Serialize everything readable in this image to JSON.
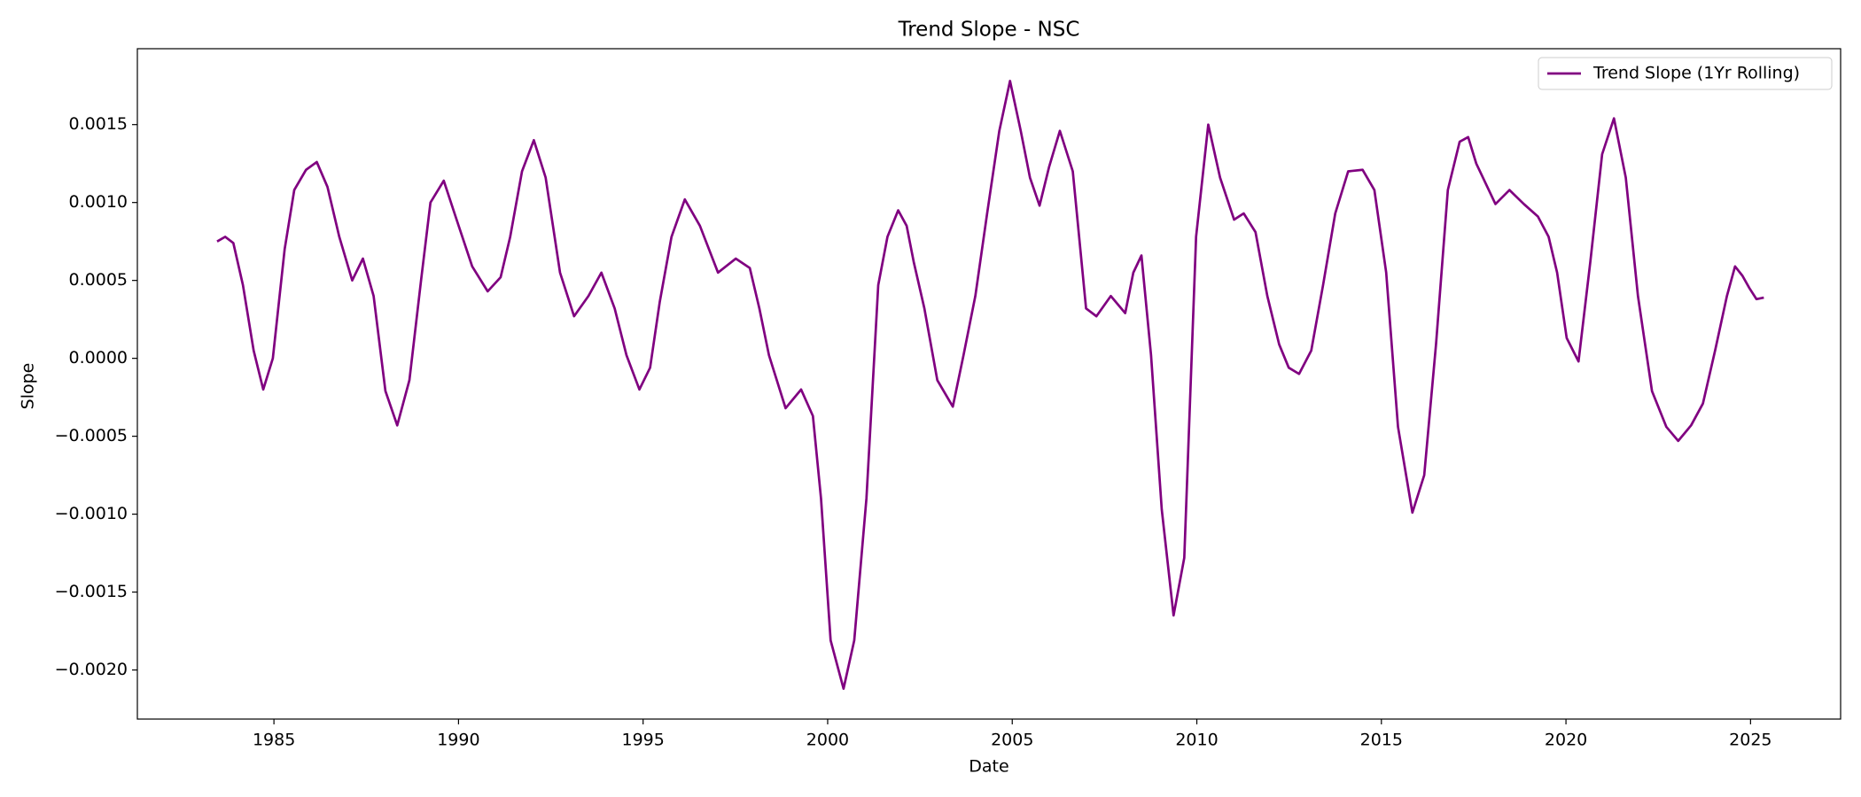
{
  "chart_data": {
    "type": "line",
    "title": "Trend Slope - NSC",
    "x_label": "Date",
    "y_label": "Slope",
    "x": [
      1983.46,
      1983.68,
      1983.9,
      1984.16,
      1984.45,
      1984.71,
      1984.97,
      1985.29,
      1985.55,
      1985.87,
      1986.16,
      1986.45,
      1986.77,
      1987.12,
      1987.41,
      1987.7,
      1988.02,
      1988.34,
      1988.67,
      1988.99,
      1989.24,
      1989.6,
      1989.92,
      1990.37,
      1990.79,
      1991.14,
      1991.4,
      1991.72,
      1992.04,
      1992.36,
      1992.75,
      1993.13,
      1993.52,
      1993.87,
      1994.23,
      1994.55,
      1994.9,
      1995.19,
      1995.45,
      1995.77,
      1996.13,
      1996.54,
      1997.03,
      1997.51,
      1997.89,
      1998.15,
      1998.41,
      1998.86,
      1999.28,
      1999.6,
      1999.82,
      2000.08,
      2000.43,
      2000.72,
      2001.05,
      2001.37,
      2001.62,
      2001.91,
      2002.14,
      2002.33,
      2002.62,
      2002.97,
      2003.39,
      2003.68,
      2004.0,
      2004.32,
      2004.65,
      2004.94,
      2005.23,
      2005.48,
      2005.74,
      2006.0,
      2006.29,
      2006.64,
      2007.0,
      2007.28,
      2007.67,
      2008.06,
      2008.28,
      2008.5,
      2008.76,
      2009.05,
      2009.37,
      2009.66,
      2009.98,
      2010.31,
      2010.63,
      2011.01,
      2011.27,
      2011.59,
      2011.91,
      2012.23,
      2012.49,
      2012.77,
      2013.1,
      2013.42,
      2013.75,
      2014.1,
      2014.49,
      2014.81,
      2015.13,
      2015.45,
      2015.84,
      2016.16,
      2016.48,
      2016.8,
      2017.12,
      2017.35,
      2017.57,
      2017.83,
      2018.09,
      2018.47,
      2018.86,
      2019.24,
      2019.53,
      2019.76,
      2020.02,
      2020.34,
      2020.66,
      2020.98,
      2021.3,
      2021.62,
      2021.95,
      2022.33,
      2022.72,
      2023.04,
      2023.39,
      2023.71,
      2024.04,
      2024.36,
      2024.58,
      2024.78,
      2024.97,
      2025.16,
      2025.36
    ],
    "series": [
      {
        "name": "Trend Slope (1Yr Rolling)",
        "color": "#800080",
        "values": [
          0.00075,
          0.00078,
          0.00074,
          0.00047,
          5e-05,
          -0.0002,
          0.0,
          0.0007,
          0.00108,
          0.00121,
          0.00126,
          0.0011,
          0.00078,
          0.0005,
          0.00064,
          0.0004,
          -0.00021,
          -0.00043,
          -0.00014,
          0.00051,
          0.001,
          0.00114,
          0.00091,
          0.00059,
          0.00043,
          0.00052,
          0.00078,
          0.0012,
          0.0014,
          0.00116,
          0.00055,
          0.00027,
          0.0004,
          0.00055,
          0.00032,
          2e-05,
          -0.0002,
          -6e-05,
          0.00036,
          0.00078,
          0.00102,
          0.00085,
          0.00055,
          0.00064,
          0.00058,
          0.00032,
          2e-05,
          -0.00032,
          -0.0002,
          -0.00037,
          -0.0009,
          -0.00181,
          -0.00212,
          -0.00181,
          -0.0009,
          0.00047,
          0.00078,
          0.00095,
          0.00085,
          0.00062,
          0.00032,
          -0.00014,
          -0.00031,
          2e-05,
          0.0004,
          0.00093,
          0.00146,
          0.00178,
          0.00146,
          0.00116,
          0.00098,
          0.00123,
          0.00146,
          0.0012,
          0.00032,
          0.00027,
          0.0004,
          0.00029,
          0.00055,
          0.00066,
          2e-05,
          -0.00097,
          -0.00165,
          -0.00128,
          0.00078,
          0.0015,
          0.00116,
          0.00089,
          0.00093,
          0.00081,
          0.0004,
          9e-05,
          -6e-05,
          -0.0001,
          5e-05,
          0.00047,
          0.00093,
          0.0012,
          0.00121,
          0.00108,
          0.00055,
          -0.00044,
          -0.00099,
          -0.00075,
          9e-05,
          0.00108,
          0.00139,
          0.00142,
          0.00125,
          0.00112,
          0.00099,
          0.00108,
          0.00099,
          0.00091,
          0.00078,
          0.00055,
          0.00013,
          -2e-05,
          0.00062,
          0.00131,
          0.00154,
          0.00116,
          0.0004,
          -0.00021,
          -0.00044,
          -0.00053,
          -0.00043,
          -0.00029,
          5e-05,
          0.0004,
          0.00059,
          0.00053,
          0.00045,
          0.00038,
          0.00039
        ]
      }
    ],
    "xlim": [
      1981.3,
      2027.44
    ],
    "xticks": [
      1985,
      1990,
      1995,
      2000,
      2005,
      2010,
      2015,
      2020,
      2025
    ],
    "ylim": [
      -0.002315,
      0.001987
    ],
    "yticks": [
      {
        "value": -0.002,
        "label": "−0.0020"
      },
      {
        "value": -0.0015,
        "label": "−0.0015"
      },
      {
        "value": -0.001,
        "label": "−0.0010"
      },
      {
        "value": -0.0005,
        "label": "−0.0005"
      },
      {
        "value": 0,
        "label": "0.0000"
      },
      {
        "value": 0.0005,
        "label": "0.0005"
      },
      {
        "value": 0.001,
        "label": "0.0010"
      },
      {
        "value": 0.0015,
        "label": "0.0015"
      }
    ],
    "grid": false,
    "legend": "upper right"
  }
}
